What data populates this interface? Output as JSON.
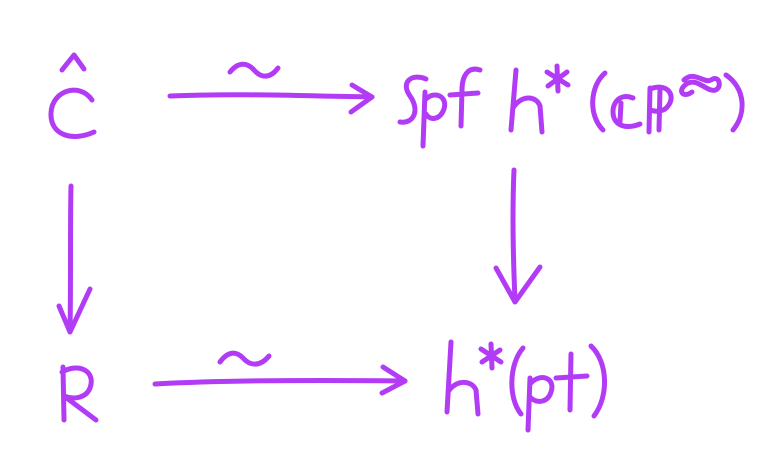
{
  "diagram": {
    "stroke_color": "#b23cf5",
    "nodes": {
      "top_left": "Ĉ",
      "top_right": "Spf h*(ℂℙ∞)",
      "bottom_left": "R",
      "bottom_right": "h*(pt)"
    },
    "arrows": {
      "top": {
        "label": "~"
      },
      "bottom": {
        "label": "~"
      }
    }
  }
}
